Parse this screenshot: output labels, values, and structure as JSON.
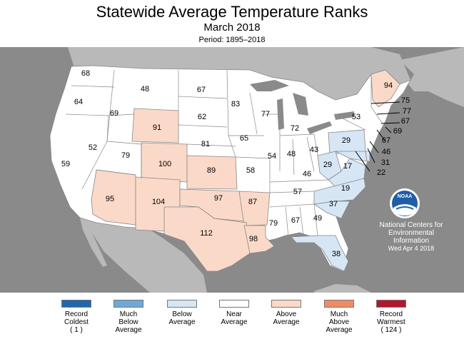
{
  "title": "Statewide Average Temperature Ranks",
  "subtitle": "March 2018",
  "period": "Period: 1895–2018",
  "agency": {
    "logo_text": "NOAA",
    "line1": "National Centers for",
    "line2": "Environmental",
    "line3": "Information",
    "date": "Wed Apr  4 2018"
  },
  "colors": {
    "ocean": "#8a8a8a",
    "other_land": "#b9b9b9",
    "record_coldest": "#2166ac",
    "much_below": "#6fa8d8",
    "below": "#d6e6f5",
    "near": "#ffffff",
    "above": "#fbd9c8",
    "much_above": "#f08c63",
    "record_warmest": "#b2182b",
    "border": "#888888"
  },
  "legend": [
    {
      "line1": "Record",
      "line2": "Coldest",
      "line3": "( 1 )",
      "color": "#2166ac"
    },
    {
      "line1": "Much",
      "line2": "Below",
      "line3": "Average",
      "color": "#6fa8d8"
    },
    {
      "line1": "Below",
      "line2": "Average",
      "line3": "",
      "color": "#d6e6f5"
    },
    {
      "line1": "Near",
      "line2": "Average",
      "line3": "",
      "color": "#ffffff"
    },
    {
      "line1": "Above",
      "line2": "Average",
      "line3": "",
      "color": "#fbd9c8"
    },
    {
      "line1": "Much",
      "line2": "Above",
      "line3": "Average",
      "color": "#f08c63"
    },
    {
      "line1": "Record",
      "line2": "Warmest",
      "line3": "( 124 )",
      "color": "#b2182b"
    }
  ],
  "states": [
    {
      "state": "WA",
      "rank": "68",
      "category": "near"
    },
    {
      "state": "OR",
      "rank": "64",
      "category": "near"
    },
    {
      "state": "ID",
      "rank": "69",
      "category": "near"
    },
    {
      "state": "MT",
      "rank": "48",
      "category": "near"
    },
    {
      "state": "WY",
      "rank": "91",
      "category": "above"
    },
    {
      "state": "ND",
      "rank": "67",
      "category": "near"
    },
    {
      "state": "SD",
      "rank": "62",
      "category": "near"
    },
    {
      "state": "MN",
      "rank": "83",
      "category": "near"
    },
    {
      "state": "WI",
      "rank": "77",
      "category": "near"
    },
    {
      "state": "MI",
      "rank": "72",
      "category": "near"
    },
    {
      "state": "ME",
      "rank": "94",
      "category": "above"
    },
    {
      "state": "NY",
      "rank": "53",
      "category": "near"
    },
    {
      "state": "NV",
      "rank": "52",
      "category": "near"
    },
    {
      "state": "CA",
      "rank": "59",
      "category": "near"
    },
    {
      "state": "UT",
      "rank": "79",
      "category": "near"
    },
    {
      "state": "CO",
      "rank": "100",
      "category": "above"
    },
    {
      "state": "NE",
      "rank": "81",
      "category": "near"
    },
    {
      "state": "IA",
      "rank": "65",
      "category": "near"
    },
    {
      "state": "KS",
      "rank": "89",
      "category": "above"
    },
    {
      "state": "MO",
      "rank": "58",
      "category": "near"
    },
    {
      "state": "IL",
      "rank": "54",
      "category": "near"
    },
    {
      "state": "IN",
      "rank": "48",
      "category": "near"
    },
    {
      "state": "OH",
      "rank": "43",
      "category": "near"
    },
    {
      "state": "PA",
      "rank": "29",
      "category": "below"
    },
    {
      "state": "WV",
      "rank": "29",
      "category": "below"
    },
    {
      "state": "VA",
      "rank": "17",
      "category": "below"
    },
    {
      "state": "KY",
      "rank": "46",
      "category": "near"
    },
    {
      "state": "AZ",
      "rank": "95",
      "category": "above"
    },
    {
      "state": "NM",
      "rank": "104",
      "category": "above"
    },
    {
      "state": "OK",
      "rank": "97",
      "category": "above"
    },
    {
      "state": "AR",
      "rank": "87",
      "category": "above"
    },
    {
      "state": "TN",
      "rank": "57",
      "category": "near"
    },
    {
      "state": "NC",
      "rank": "19",
      "category": "below"
    },
    {
      "state": "SC",
      "rank": "37",
      "category": "below"
    },
    {
      "state": "TX",
      "rank": "112",
      "category": "above"
    },
    {
      "state": "LA",
      "rank": "98",
      "category": "above"
    },
    {
      "state": "MS",
      "rank": "79",
      "category": "near"
    },
    {
      "state": "AL",
      "rank": "67",
      "category": "near"
    },
    {
      "state": "GA",
      "rank": "49",
      "category": "near"
    },
    {
      "state": "FL",
      "rank": "38",
      "category": "below"
    },
    {
      "state": "NH",
      "rank": "75",
      "category": "near"
    },
    {
      "state": "VT",
      "rank": "77",
      "category": "near"
    },
    {
      "state": "MA",
      "rank": "67",
      "category": "near"
    },
    {
      "state": "RI",
      "rank": "69",
      "category": "near"
    },
    {
      "state": "CT",
      "rank": "67",
      "category": "near"
    },
    {
      "state": "NJ",
      "rank": "46",
      "category": "near"
    },
    {
      "state": "DE",
      "rank": "31",
      "category": "below"
    },
    {
      "state": "MD",
      "rank": "22",
      "category": "below"
    }
  ]
}
